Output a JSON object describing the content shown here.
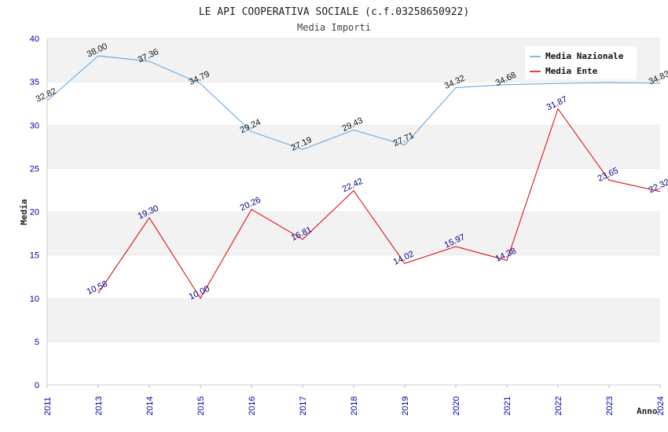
{
  "chart_data": {
    "type": "line",
    "title": "LE API COOPERATIVA SOCIALE (c.f.03258650922)",
    "subtitle": "Media Importi",
    "xlabel": "Anno",
    "ylabel": "Media",
    "ylim": [
      0,
      40
    ],
    "yticks": [
      "0",
      "5",
      "10",
      "15",
      "20",
      "25",
      "30",
      "35",
      "40"
    ],
    "categories": [
      "2011",
      "2013",
      "2014",
      "2015",
      "2016",
      "2017",
      "2018",
      "2019",
      "2020",
      "2021",
      "2022",
      "2023",
      "2024"
    ],
    "grid": "horizontal bands",
    "legend_position": "top-right",
    "series": [
      {
        "name": "Media Nazionale",
        "color": "#5aa0e0",
        "values": [
          32.82,
          38.0,
          37.36,
          34.79,
          29.24,
          27.19,
          29.43,
          27.71,
          34.32,
          34.68,
          34.8,
          34.9,
          34.83
        ],
        "labels": [
          "32.82",
          "38.00",
          "37.36",
          "34.79",
          "29.24",
          "27.19",
          "29.43",
          "27.71",
          "34.32",
          "34.68",
          "",
          "",
          "34.83"
        ]
      },
      {
        "name": "Media Ente",
        "color": "#dd0000",
        "values": [
          null,
          10.58,
          19.3,
          10.0,
          20.26,
          16.81,
          22.42,
          14.02,
          15.97,
          14.38,
          31.87,
          23.65,
          22.32
        ],
        "labels": [
          "",
          "10.58",
          "19.30",
          "10.00",
          "20.26",
          "16.81",
          "22.42",
          "14.02",
          "15.97",
          "14.38",
          "31.87",
          "23.65",
          "22.32"
        ]
      }
    ]
  }
}
